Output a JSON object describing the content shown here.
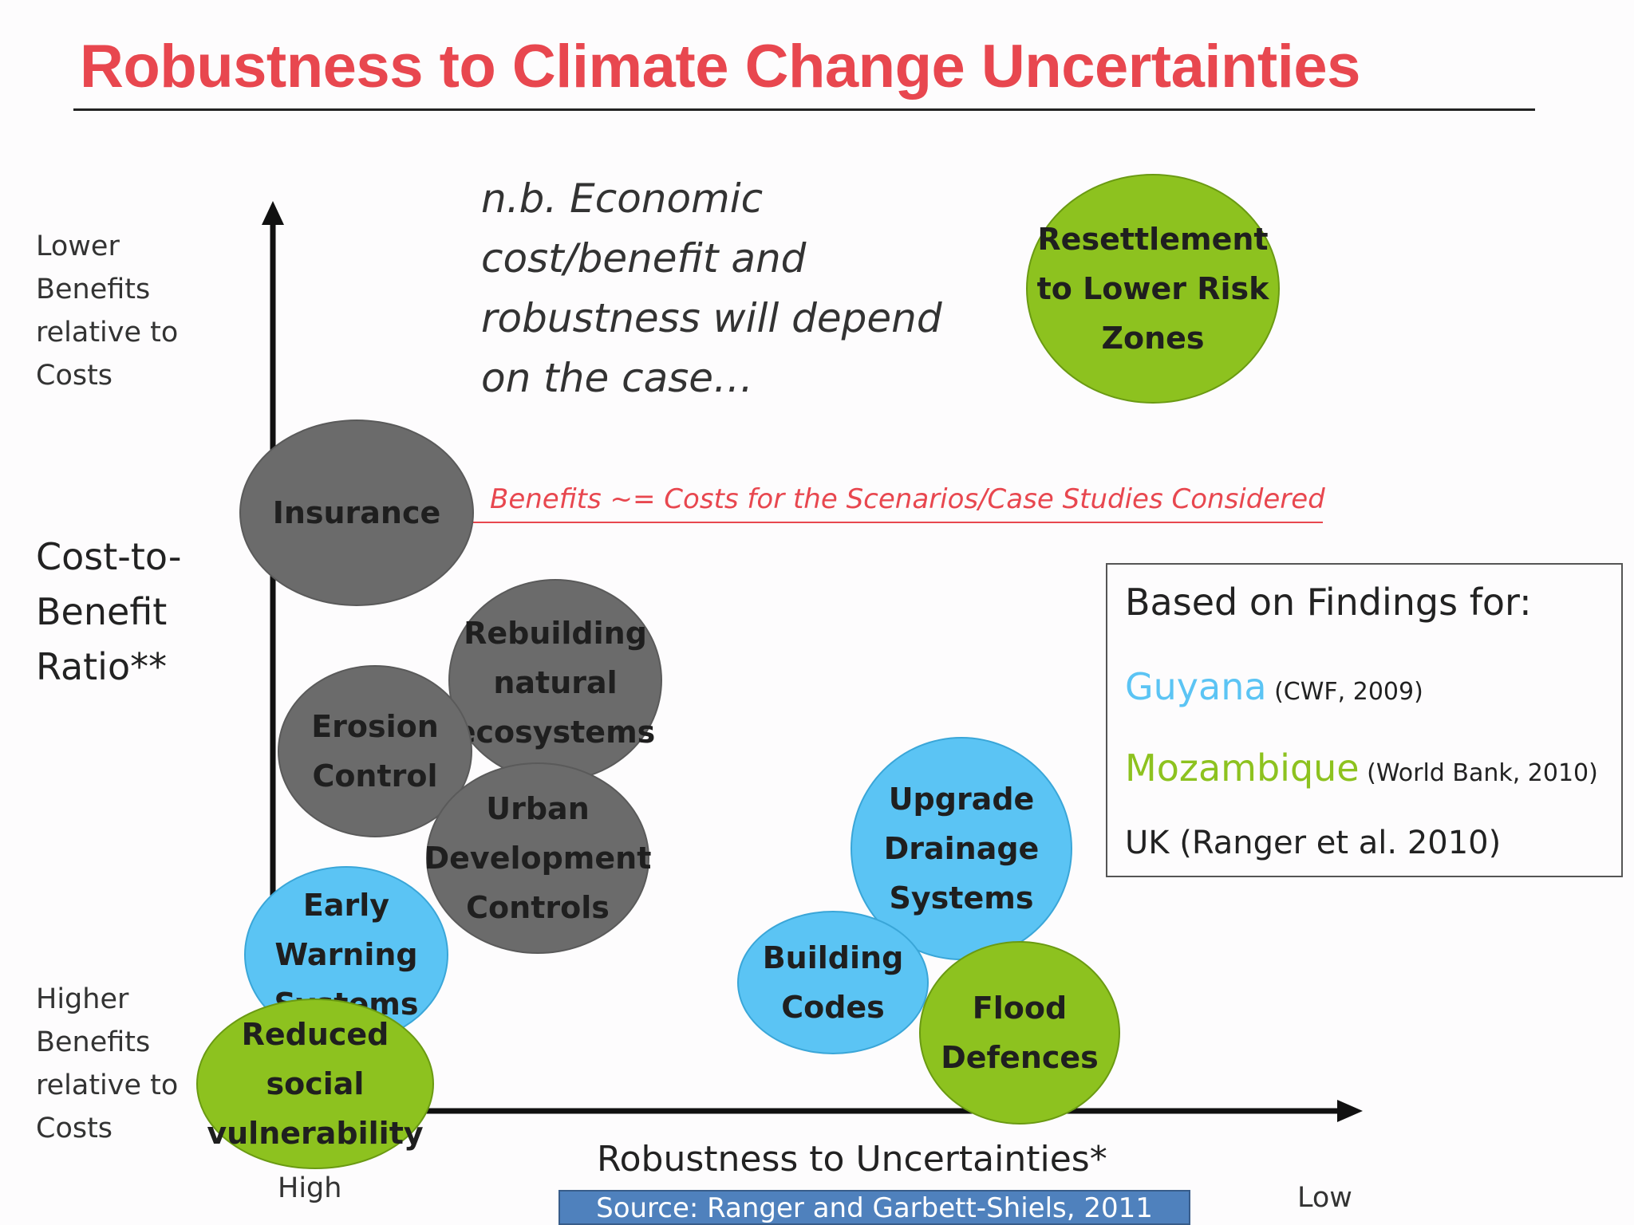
{
  "title": "Robustness to Climate Change Uncertainties",
  "y_axis": {
    "top_label": "Lower\nBenefits\nrelative to\nCosts",
    "main_label": "Cost-to-\nBenefit\nRatio**",
    "bottom_label": "Higher\nBenefits\nrelative to\nCosts"
  },
  "x_axis": {
    "label": "Robustness to Uncertainties*",
    "left_label": "High",
    "right_label": "Low"
  },
  "note": "n.b. Economic\ncost/benefit and\nrobustness will depend\non the case…",
  "threshold": "Benefits ~= Costs for the Scenarios/Case Studies Considered",
  "bubbles": {
    "resettlement": "Resettlement\nto Lower Risk\nZones",
    "insurance": "Insurance",
    "rebuilding": "Rebuilding\nnatural\necosystems",
    "erosion": "Erosion\nControl",
    "urban": "Urban\nDevelopment\nControls",
    "early_warning": "Early Warning\nSystems",
    "reduced_social": "Reduced social\nvulnerability",
    "upgrade_drainage": "Upgrade\nDrainage\nSystems",
    "building_codes": "Building\nCodes",
    "flood_defences": "Flood\nDefences"
  },
  "findings": {
    "title": "Based on Findings for:",
    "items": [
      {
        "country": "Guyana",
        "source": " (CWF, 2009)",
        "color": "#5bc4f4"
      },
      {
        "country": "Mozambique",
        "source": " (World Bank, 2010)",
        "color": "#8dc21f"
      },
      {
        "country": "UK",
        "source": " (Ranger et al. 2010)",
        "color": "#222222"
      }
    ]
  },
  "source": "Source: Ranger and Garbett-Shiels, 2011",
  "colors": {
    "title": "#e8474f",
    "grey_bubble": "#6b6b6b",
    "blue_bubble": "#5bc4f4",
    "green_bubble": "#8dc21f"
  }
}
